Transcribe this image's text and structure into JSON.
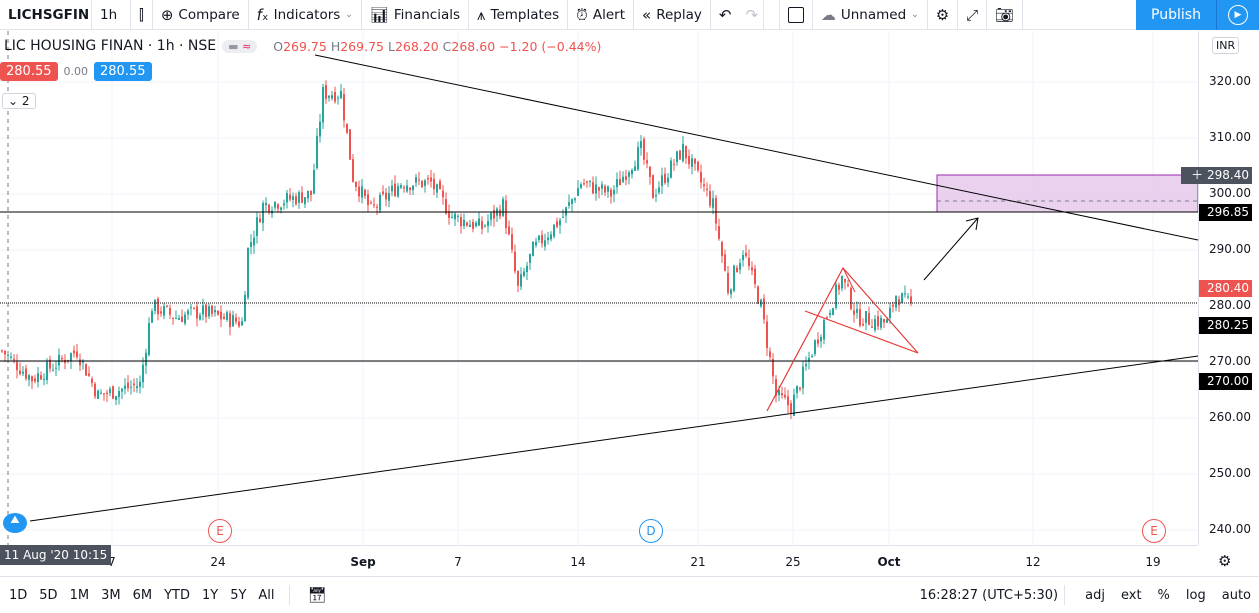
{
  "toolbar": {
    "symbol": "LICHSGFIN",
    "interval": "1h",
    "compare": "Compare",
    "indicators": "Indicators",
    "financials": "Financials",
    "templates": "Templates",
    "alert": "Alert",
    "replay": "Replay",
    "layout_name": "Unnamed",
    "publish": "Publish"
  },
  "legend": {
    "title": "LIC HOUSING FINAN · 1h · NSE",
    "o_label": "O",
    "o": "269.75",
    "h_label": "H",
    "h": "269.75",
    "l_label": "L",
    "l": "268.20",
    "c_label": "C",
    "c": "268.60",
    "change": "−1.20 (−0.44%)",
    "sell": "280.55",
    "spread": "0.00",
    "buy": "280.55",
    "collapse": "2",
    "currency": "INR"
  },
  "price_axis": {
    "ticks": [
      "320.00",
      "310.00",
      "300.00",
      "290.00",
      "280.00",
      "270.00",
      "260.00",
      "250.00",
      "240.00"
    ],
    "tags": {
      "crosshair": "298.40",
      "hline_top": "296.85",
      "last": "280.40",
      "hline_mid": "280.25",
      "hline_low": "270.00"
    }
  },
  "time_axis": {
    "crosshair": "11 Aug '20   10:15",
    "ticks": [
      "7",
      "24",
      "Sep",
      "7",
      "14",
      "21",
      "25",
      "Oct",
      "12",
      "19"
    ]
  },
  "events": [
    "E",
    "D",
    "E"
  ],
  "bottom": {
    "ranges": [
      "1D",
      "5D",
      "1M",
      "3M",
      "6M",
      "YTD",
      "1Y",
      "5Y",
      "All"
    ],
    "clock": "16:28:27 (UTC+5:30)",
    "opts": [
      "adj",
      "ext",
      "%",
      "log",
      "auto"
    ]
  },
  "colors": {
    "up": "#26a69a",
    "down": "#ef5350",
    "accent": "#2196f3"
  },
  "chart_data": {
    "type": "candlestick",
    "price_path": [
      [
        0,
        272
      ],
      [
        10,
        267
      ],
      [
        25,
        272
      ],
      [
        32,
        264
      ],
      [
        46,
        266
      ],
      [
        50,
        280
      ],
      [
        58,
        278
      ],
      [
        66,
        279
      ],
      [
        80,
        277
      ],
      [
        82,
        290
      ],
      [
        87,
        298
      ],
      [
        103,
        300
      ],
      [
        107,
        318
      ],
      [
        113,
        318
      ],
      [
        117,
        303
      ],
      [
        123,
        297
      ],
      [
        133,
        302
      ],
      [
        143,
        302
      ],
      [
        150,
        296
      ],
      [
        160,
        294
      ],
      [
        167,
        298
      ],
      [
        172,
        283
      ],
      [
        177,
        290
      ],
      [
        187,
        296
      ],
      [
        193,
        302
      ],
      [
        203,
        300
      ],
      [
        213,
        308
      ],
      [
        217,
        300
      ],
      [
        227,
        308
      ],
      [
        237,
        298
      ],
      [
        242,
        283
      ],
      [
        247,
        290
      ],
      [
        253,
        280
      ],
      [
        258,
        264
      ],
      [
        263,
        262
      ],
      [
        270,
        272
      ],
      [
        280,
        285
      ],
      [
        285,
        278
      ],
      [
        295,
        277
      ],
      [
        298,
        282
      ],
      [
        303,
        280
      ]
    ]
  }
}
